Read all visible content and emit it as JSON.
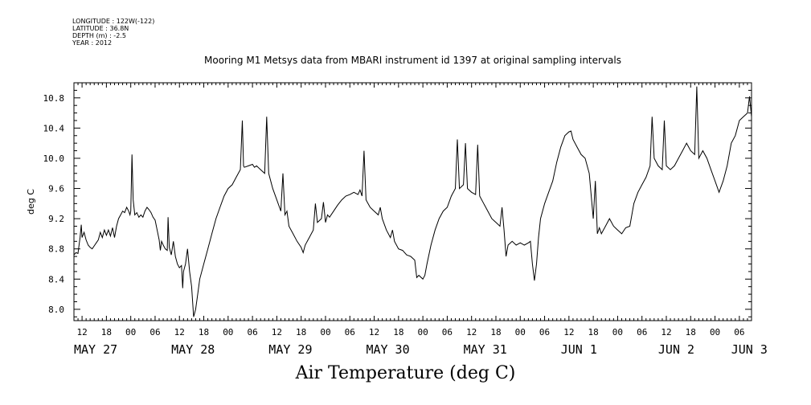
{
  "meta": {
    "longitude": "LONGITUDE : 122W(-122)",
    "latitude": "LATITUDE : 36.8N",
    "depth": "DEPTH (m) : -2.5",
    "year": "YEAR : 2012"
  },
  "chart_data": {
    "type": "line",
    "title": "Mooring M1 Metsys data from MBARI instrument id 1397 at original sampling intervals",
    "ylabel": "deg C",
    "xlabel": "Air Temperature (deg C)",
    "ylim": [
      7.85,
      11.0
    ],
    "xlim_hours": [
      -14,
      153
    ],
    "y_ticks": [
      "8.0",
      "8.4",
      "8.8",
      "9.2",
      "9.6",
      "10.0",
      "10.4",
      "10.8"
    ],
    "x_hour_ticks": [
      "12",
      "18",
      "00",
      "06",
      "12",
      "18",
      "00",
      "06",
      "12",
      "18",
      "00",
      "06",
      "12",
      "18",
      "00",
      "06",
      "12",
      "18",
      "00",
      "06",
      "12",
      "18",
      "00",
      "06",
      "12",
      "18",
      "00",
      "06"
    ],
    "date_labels": [
      "MAY 27",
      "MAY 28",
      "MAY 29",
      "MAY 30",
      "MAY 31",
      "JUN  1",
      "JUN  2",
      "JUN  3"
    ],
    "series": [
      {
        "values": [
          [
            -14,
            8.72
          ],
          [
            -13.5,
            8.75
          ],
          [
            -13,
            8.74
          ],
          [
            -12.5,
            8.95
          ],
          [
            -12.2,
            9.12
          ],
          [
            -12,
            8.95
          ],
          [
            -11.5,
            9.02
          ],
          [
            -11,
            8.92
          ],
          [
            -10.5,
            8.85
          ],
          [
            -10,
            8.82
          ],
          [
            -9.5,
            8.8
          ],
          [
            -9,
            8.84
          ],
          [
            -8.5,
            8.88
          ],
          [
            -8,
            8.92
          ],
          [
            -7.5,
            9.02
          ],
          [
            -7,
            8.95
          ],
          [
            -6.5,
            9.05
          ],
          [
            -6,
            8.98
          ],
          [
            -5.5,
            9.05
          ],
          [
            -5,
            8.97
          ],
          [
            -4.5,
            9.08
          ],
          [
            -4,
            8.95
          ],
          [
            -3.5,
            9.1
          ],
          [
            -3,
            9.2
          ],
          [
            -2.5,
            9.25
          ],
          [
            -2,
            9.3
          ],
          [
            -1.5,
            9.28
          ],
          [
            -1,
            9.35
          ],
          [
            -0.5,
            9.3
          ],
          [
            -0.2,
            9.25
          ],
          [
            0,
            9.3
          ],
          [
            0.3,
            10.05
          ],
          [
            0.6,
            9.45
          ],
          [
            1,
            9.25
          ],
          [
            1.5,
            9.28
          ],
          [
            2,
            9.22
          ],
          [
            2.5,
            9.25
          ],
          [
            3,
            9.22
          ],
          [
            3.5,
            9.3
          ],
          [
            4,
            9.35
          ],
          [
            4.5,
            9.32
          ],
          [
            5,
            9.28
          ],
          [
            5.5,
            9.22
          ],
          [
            6,
            9.18
          ],
          [
            6.5,
            9.05
          ],
          [
            7,
            8.92
          ],
          [
            7.3,
            8.78
          ],
          [
            7.6,
            8.9
          ],
          [
            8,
            8.85
          ],
          [
            8.5,
            8.8
          ],
          [
            9,
            8.78
          ],
          [
            9.2,
            9.22
          ],
          [
            9.5,
            8.82
          ],
          [
            10,
            8.72
          ],
          [
            10.5,
            8.9
          ],
          [
            11,
            8.7
          ],
          [
            11.5,
            8.6
          ],
          [
            12,
            8.55
          ],
          [
            12.5,
            8.58
          ],
          [
            12.8,
            8.28
          ],
          [
            13,
            8.5
          ],
          [
            13.5,
            8.6
          ],
          [
            14,
            8.8
          ],
          [
            14.5,
            8.5
          ],
          [
            15,
            8.3
          ],
          [
            15.5,
            7.9
          ],
          [
            16,
            8.0
          ],
          [
            16.5,
            8.2
          ],
          [
            17,
            8.4
          ],
          [
            18,
            8.6
          ],
          [
            19,
            8.8
          ],
          [
            20,
            9.0
          ],
          [
            21,
            9.2
          ],
          [
            22,
            9.35
          ],
          [
            23,
            9.5
          ],
          [
            24,
            9.6
          ],
          [
            25,
            9.65
          ],
          [
            26,
            9.75
          ],
          [
            27,
            9.85
          ],
          [
            27.5,
            10.5
          ],
          [
            27.8,
            9.9
          ],
          [
            28,
            9.88
          ],
          [
            29,
            9.9
          ],
          [
            30,
            9.92
          ],
          [
            30.5,
            9.88
          ],
          [
            31,
            9.9
          ],
          [
            32,
            9.85
          ],
          [
            33,
            9.8
          ],
          [
            33.5,
            10.55
          ],
          [
            34,
            9.8
          ],
          [
            35,
            9.6
          ],
          [
            36,
            9.45
          ],
          [
            37,
            9.3
          ],
          [
            37.5,
            9.8
          ],
          [
            38,
            9.25
          ],
          [
            38.5,
            9.3
          ],
          [
            39,
            9.1
          ],
          [
            40,
            9.0
          ],
          [
            41,
            8.9
          ],
          [
            42,
            8.82
          ],
          [
            42.5,
            8.75
          ],
          [
            43,
            8.85
          ],
          [
            44,
            8.95
          ],
          [
            45,
            9.05
          ],
          [
            45.5,
            9.4
          ],
          [
            46,
            9.15
          ],
          [
            47,
            9.2
          ],
          [
            47.5,
            9.42
          ],
          [
            48,
            9.15
          ],
          [
            48.5,
            9.25
          ],
          [
            49,
            9.22
          ],
          [
            50,
            9.3
          ],
          [
            51,
            9.38
          ],
          [
            52,
            9.45
          ],
          [
            53,
            9.5
          ],
          [
            54,
            9.52
          ],
          [
            55,
            9.55
          ],
          [
            56,
            9.52
          ],
          [
            56.5,
            9.58
          ],
          [
            57,
            9.5
          ],
          [
            57.5,
            10.1
          ],
          [
            58,
            9.45
          ],
          [
            59,
            9.35
          ],
          [
            60,
            9.3
          ],
          [
            61,
            9.25
          ],
          [
            61.5,
            9.35
          ],
          [
            62,
            9.2
          ],
          [
            63,
            9.05
          ],
          [
            64,
            8.95
          ],
          [
            64.5,
            9.05
          ],
          [
            65,
            8.9
          ],
          [
            66,
            8.8
          ],
          [
            67,
            8.78
          ],
          [
            68,
            8.72
          ],
          [
            69,
            8.7
          ],
          [
            70,
            8.65
          ],
          [
            70.5,
            8.42
          ],
          [
            71,
            8.45
          ],
          [
            72,
            8.4
          ],
          [
            72.5,
            8.45
          ],
          [
            73,
            8.6
          ],
          [
            74,
            8.85
          ],
          [
            75,
            9.05
          ],
          [
            76,
            9.2
          ],
          [
            77,
            9.3
          ],
          [
            78,
            9.35
          ],
          [
            79,
            9.5
          ],
          [
            80,
            9.6
          ],
          [
            80.5,
            10.25
          ],
          [
            81,
            9.6
          ],
          [
            82,
            9.65
          ],
          [
            82.5,
            10.2
          ],
          [
            83,
            9.6
          ],
          [
            84,
            9.55
          ],
          [
            85,
            9.52
          ],
          [
            85.5,
            10.18
          ],
          [
            86,
            9.5
          ],
          [
            87,
            9.4
          ],
          [
            88,
            9.3
          ],
          [
            89,
            9.2
          ],
          [
            90,
            9.15
          ],
          [
            91,
            9.1
          ],
          [
            91.5,
            9.35
          ],
          [
            92,
            9.05
          ],
          [
            92.5,
            8.7
          ],
          [
            93,
            8.85
          ],
          [
            94,
            8.9
          ],
          [
            95,
            8.85
          ],
          [
            96,
            8.88
          ],
          [
            97,
            8.85
          ],
          [
            98,
            8.88
          ],
          [
            98.5,
            8.9
          ],
          [
            99,
            8.6
          ],
          [
            99.5,
            8.38
          ],
          [
            100,
            8.6
          ],
          [
            100.5,
            8.95
          ],
          [
            101,
            9.2
          ],
          [
            102,
            9.4
          ],
          [
            103,
            9.55
          ],
          [
            104,
            9.7
          ],
          [
            105,
            9.95
          ],
          [
            106,
            10.15
          ],
          [
            107,
            10.3
          ],
          [
            108,
            10.35
          ],
          [
            108.5,
            10.36
          ],
          [
            109,
            10.25
          ],
          [
            110,
            10.15
          ],
          [
            111,
            10.05
          ],
          [
            112,
            10.0
          ],
          [
            113,
            9.8
          ],
          [
            113.5,
            9.5
          ],
          [
            114,
            9.2
          ],
          [
            114.5,
            9.7
          ],
          [
            115,
            9.0
          ],
          [
            115.5,
            9.08
          ],
          [
            116,
            9.0
          ],
          [
            117,
            9.1
          ],
          [
            118,
            9.2
          ],
          [
            119,
            9.1
          ],
          [
            120,
            9.05
          ],
          [
            121,
            9.0
          ],
          [
            122,
            9.08
          ],
          [
            123,
            9.1
          ],
          [
            124,
            9.4
          ],
          [
            125,
            9.55
          ],
          [
            126,
            9.65
          ],
          [
            127,
            9.75
          ],
          [
            128,
            9.9
          ],
          [
            128.5,
            10.55
          ],
          [
            129,
            10.0
          ],
          [
            130,
            9.9
          ],
          [
            131,
            9.85
          ],
          [
            131.5,
            10.5
          ],
          [
            132,
            9.9
          ],
          [
            133,
            9.85
          ],
          [
            134,
            9.9
          ],
          [
            135,
            10.0
          ],
          [
            136,
            10.1
          ],
          [
            137,
            10.2
          ],
          [
            138,
            10.1
          ],
          [
            139,
            10.05
          ],
          [
            139.5,
            10.95
          ],
          [
            140,
            10.0
          ],
          [
            141,
            10.1
          ],
          [
            142,
            10.0
          ],
          [
            143,
            9.85
          ],
          [
            144,
            9.7
          ],
          [
            145,
            9.55
          ],
          [
            146,
            9.7
          ],
          [
            147,
            9.9
          ],
          [
            148,
            10.2
          ],
          [
            149,
            10.3
          ],
          [
            150,
            10.5
          ],
          [
            151,
            10.55
          ],
          [
            152,
            10.6
          ],
          [
            152.5,
            10.82
          ],
          [
            153,
            10.55
          ]
        ]
      }
    ]
  }
}
